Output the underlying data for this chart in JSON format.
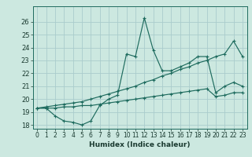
{
  "xlabel": "Humidex (Indice chaleur)",
  "bg_color": "#cce8e0",
  "grid_color": "#aacccc",
  "line_color": "#1e6b5e",
  "x_data": [
    0,
    1,
    2,
    3,
    4,
    5,
    6,
    7,
    8,
    9,
    10,
    11,
    12,
    13,
    14,
    15,
    16,
    17,
    18,
    19,
    20,
    21,
    22,
    23
  ],
  "y_main": [
    19.3,
    19.3,
    18.7,
    18.3,
    18.2,
    18.0,
    18.3,
    19.5,
    20.0,
    20.3,
    23.5,
    23.3,
    26.3,
    23.8,
    22.2,
    22.2,
    22.5,
    22.8,
    23.3,
    23.3,
    20.5,
    21.0,
    21.3,
    21.0
  ],
  "y_upper": [
    19.3,
    19.4,
    19.5,
    19.6,
    19.7,
    19.8,
    20.0,
    20.2,
    20.4,
    20.6,
    20.8,
    21.0,
    21.3,
    21.5,
    21.8,
    22.0,
    22.3,
    22.5,
    22.8,
    23.0,
    23.3,
    23.5,
    24.5,
    23.3
  ],
  "y_lower": [
    19.3,
    19.3,
    19.3,
    19.4,
    19.4,
    19.5,
    19.5,
    19.6,
    19.7,
    19.8,
    19.9,
    20.0,
    20.1,
    20.2,
    20.3,
    20.4,
    20.5,
    20.6,
    20.7,
    20.8,
    20.2,
    20.3,
    20.5,
    20.5
  ],
  "ylim": [
    17.7,
    27.2
  ],
  "yticks": [
    18,
    19,
    20,
    21,
    22,
    23,
    24,
    25,
    26
  ],
  "xlim": [
    -0.5,
    23.5
  ],
  "xticks": [
    0,
    1,
    2,
    3,
    4,
    5,
    6,
    7,
    8,
    9,
    10,
    11,
    12,
    13,
    14,
    15,
    16,
    17,
    18,
    19,
    20,
    21,
    22,
    23
  ],
  "xlabel_fontsize": 6.5,
  "tick_fontsize": 5.5,
  "ytick_fontsize": 6.0,
  "linewidth": 0.85,
  "markersize": 3.0
}
